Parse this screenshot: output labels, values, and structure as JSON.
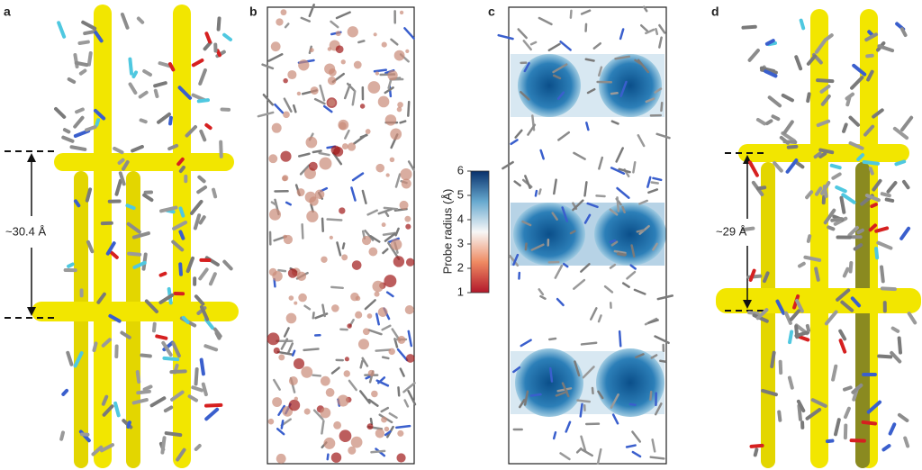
{
  "panels": [
    {
      "label": "a",
      "annotation": "~30.4 Å"
    },
    {
      "label": "b"
    },
    {
      "label": "c"
    },
    {
      "label": "d",
      "annotation": "~29 Å"
    }
  ],
  "colorbar": {
    "label": "Probe radius (Å)",
    "lim": [
      1,
      6
    ],
    "ticks": [
      1,
      2,
      3,
      4,
      5,
      6
    ]
  }
}
